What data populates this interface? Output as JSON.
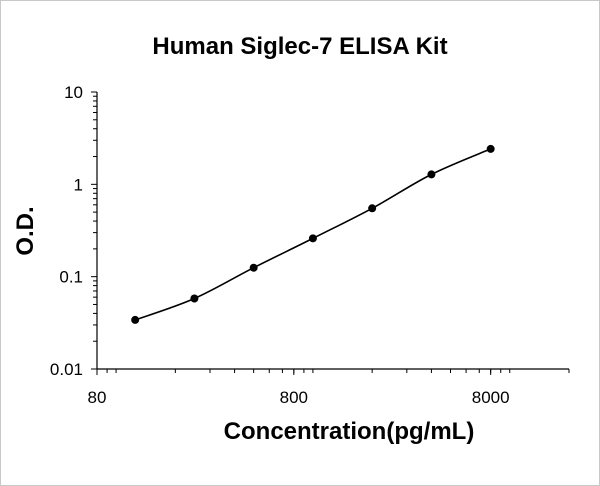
{
  "chart_data": {
    "type": "scatter",
    "title": "Human Siglec-7 ELISA Kit",
    "xlabel": "Concentration(pg/mL)",
    "ylabel": "O.D.",
    "x_scale": "log",
    "y_scale": "log",
    "xlim": [
      80,
      20000
    ],
    "ylim": [
      0.01,
      10
    ],
    "x_ticks": [
      {
        "value": 80,
        "label": "80"
      },
      {
        "value": 800,
        "label": "800"
      },
      {
        "value": 8000,
        "label": "8000"
      }
    ],
    "y_ticks": [
      {
        "value": 10,
        "label": "10"
      },
      {
        "value": 1,
        "label": "1"
      },
      {
        "value": 0.1,
        "label": "0.1"
      },
      {
        "value": 0.01,
        "label": "0.01"
      }
    ],
    "grid": false,
    "legend": "none",
    "series": [
      {
        "x": [
          125,
          250,
          500,
          1000,
          2000,
          4000,
          8000
        ],
        "y": [
          0.034,
          0.058,
          0.125,
          0.26,
          0.55,
          1.28,
          2.42
        ]
      }
    ],
    "fit_line": true,
    "colors": {
      "line": "#000000",
      "point": "#000000",
      "axis": "#000000"
    }
  }
}
